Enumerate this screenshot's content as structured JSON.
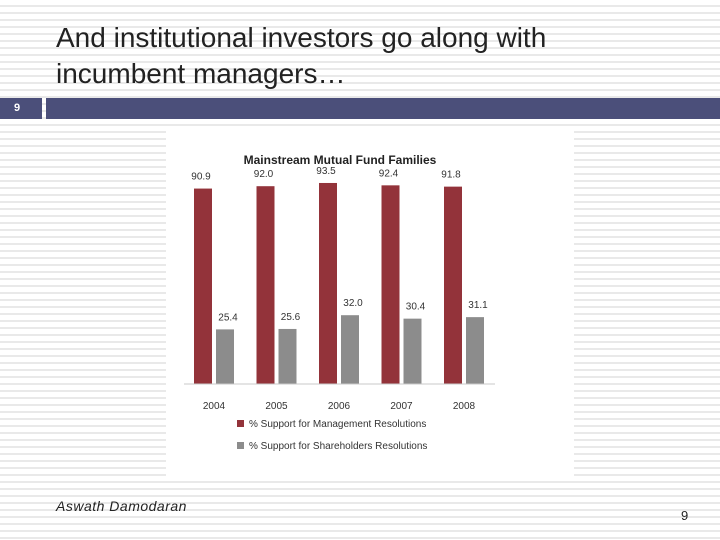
{
  "slide": {
    "title_line1": "And institutional investors go along with",
    "title_line2": "incumbent managers…",
    "slide_number_badge": "9",
    "author": "Aswath Damodaran",
    "page_number": "9",
    "accent_color": "#4b4f7a"
  },
  "chart_data": {
    "type": "bar",
    "title": "Mainstream Mutual Fund Families",
    "categories": [
      "2004",
      "2005",
      "2006",
      "2007",
      "2008"
    ],
    "series": [
      {
        "name": "% Support for Management Resolutions",
        "values": [
          90.9,
          92.0,
          93.5,
          92.4,
          91.8
        ],
        "labels": [
          "90.9",
          "92.0",
          "93.5",
          "92.4",
          "91.8"
        ],
        "color": "#93333a"
      },
      {
        "name": "% Support for Shareholders Resolutions",
        "values": [
          25.4,
          25.6,
          32.0,
          30.4,
          31.1
        ],
        "labels": [
          "25.4",
          "25.6",
          "32.0",
          "30.4",
          "31.1"
        ],
        "color": "#8c8c8c"
      }
    ],
    "ylim": [
      0,
      100
    ],
    "grid": false,
    "legend_position": "bottom"
  }
}
